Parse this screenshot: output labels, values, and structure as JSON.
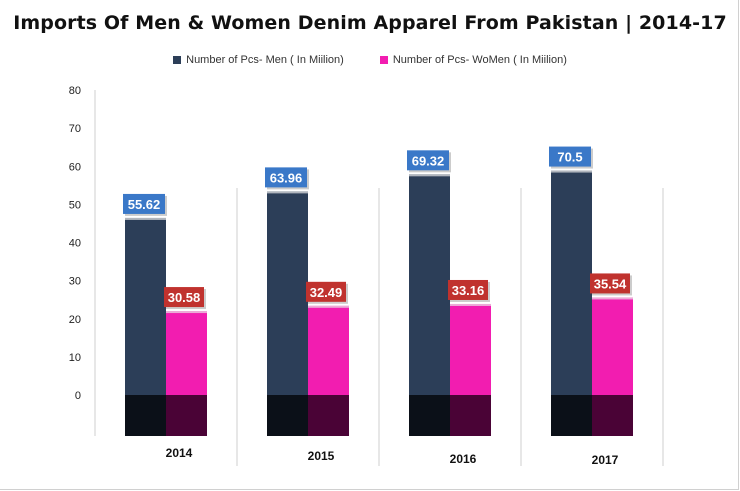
{
  "chart_data": {
    "type": "bar",
    "title": "Imports Of Men & Women Denim Apparel From Pakistan  | 2014-17",
    "categories": [
      "2014",
      "2015",
      "2016",
      "2017"
    ],
    "series": [
      {
        "name": "Number of Pcs- Men ( In Miilion)",
        "values": [
          55.62,
          63.96,
          69.32,
          70.5
        ],
        "color": "#2c3e58"
      },
      {
        "name": "Number of Pcs- WoMen ( In Miilion)",
        "values": [
          30.58,
          32.49,
          33.16,
          35.54
        ],
        "color": "#f21db0"
      }
    ],
    "yticks": [
      "80",
      "70",
      "60",
      "50",
      "40",
      "30",
      "20",
      "10",
      "0"
    ],
    "ylim": [
      0,
      80
    ],
    "legend_position": "top-center",
    "label_colors": {
      "men": "#3a78c8",
      "women": "#c0322e"
    },
    "shadow_colors": {
      "men": "#0b1018",
      "women": "#4a0336"
    }
  }
}
